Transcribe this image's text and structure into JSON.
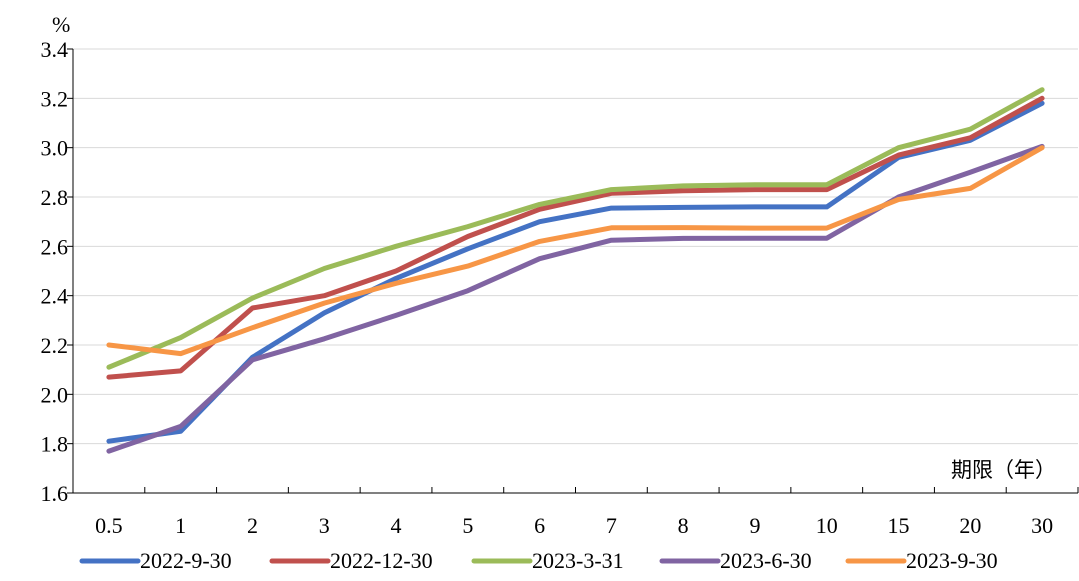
{
  "chart_data": {
    "type": "line",
    "title": "",
    "ylabel": "%",
    "xlabel": "期限（年）",
    "categories": [
      "0.5",
      "1",
      "2",
      "3",
      "4",
      "5",
      "6",
      "7",
      "8",
      "9",
      "10",
      "15",
      "20",
      "30"
    ],
    "ylim": [
      1.6,
      3.4
    ],
    "yticks": [
      "1.6",
      "1.8",
      "2.0",
      "2.2",
      "2.4",
      "2.6",
      "2.8",
      "3.0",
      "3.2",
      "3.4"
    ],
    "grid": "horizontal",
    "legend_position": "bottom",
    "series": [
      {
        "name": "2022-9-30",
        "color": "#4472C4",
        "values": [
          1.81,
          1.85,
          2.15,
          2.33,
          2.47,
          2.59,
          2.7,
          2.755,
          2.758,
          2.76,
          2.76,
          2.96,
          3.03,
          3.18
        ]
      },
      {
        "name": "2022-12-30",
        "color": "#C0504D",
        "values": [
          2.07,
          2.095,
          2.35,
          2.4,
          2.5,
          2.64,
          2.75,
          2.815,
          2.825,
          2.83,
          2.83,
          2.97,
          3.04,
          3.2
        ]
      },
      {
        "name": "2023-3-31",
        "color": "#9BBB59",
        "values": [
          2.11,
          2.23,
          2.39,
          2.51,
          2.6,
          2.68,
          2.77,
          2.83,
          2.845,
          2.85,
          2.85,
          3.0,
          3.075,
          3.235
        ]
      },
      {
        "name": "2023-6-30",
        "color": "#8064A2",
        "values": [
          1.77,
          1.87,
          2.14,
          2.225,
          2.32,
          2.42,
          2.55,
          2.625,
          2.632,
          2.633,
          2.633,
          2.8,
          2.9,
          3.005
        ]
      },
      {
        "name": "2023-9-30",
        "color": "#F79646",
        "values": [
          2.2,
          2.165,
          2.27,
          2.37,
          2.45,
          2.52,
          2.62,
          2.675,
          2.676,
          2.674,
          2.674,
          2.79,
          2.835,
          3.0
        ]
      }
    ]
  }
}
